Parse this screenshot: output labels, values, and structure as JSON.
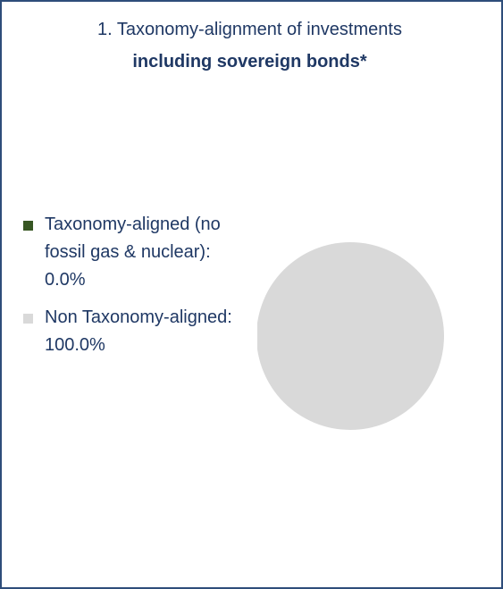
{
  "title_line1": "1. Taxonomy-alignment of investments",
  "title_line2": "including sovereign bonds*",
  "chart_data": {
    "type": "pie",
    "categories": [
      "Taxonomy-aligned (no fossil gas & nuclear)",
      "Non Taxonomy-aligned"
    ],
    "values": [
      0.0,
      100.0
    ],
    "colors": [
      "#375623",
      "#d9d9d9"
    ],
    "legend": [
      {
        "label": "Taxonomy-aligned (no fossil gas & nuclear): 0.0%",
        "color": "#375623"
      },
      {
        "label": "Non Taxonomy-aligned: 100.0%",
        "color": "#d9d9d9"
      }
    ],
    "legend_position": "left"
  }
}
